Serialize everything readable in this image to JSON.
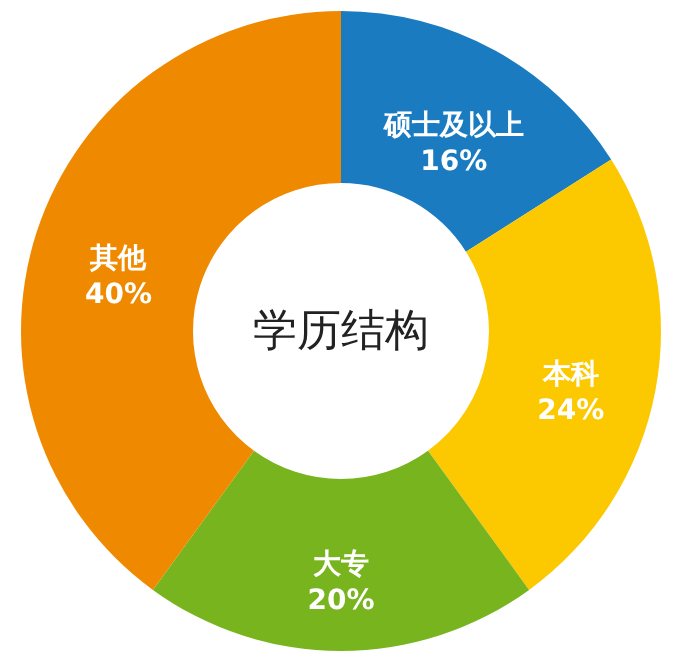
{
  "chart_data": {
    "type": "donut",
    "title": "学历结构",
    "categories": [
      "硕士及以上",
      "本科",
      "大专",
      "其他"
    ],
    "values": [
      16,
      24,
      20,
      40
    ],
    "value_labels": [
      "16%",
      "24%",
      "20%",
      "40%"
    ],
    "colors": [
      "#1a7bc0",
      "#fcc800",
      "#78b41e",
      "#ef8a00"
    ]
  }
}
